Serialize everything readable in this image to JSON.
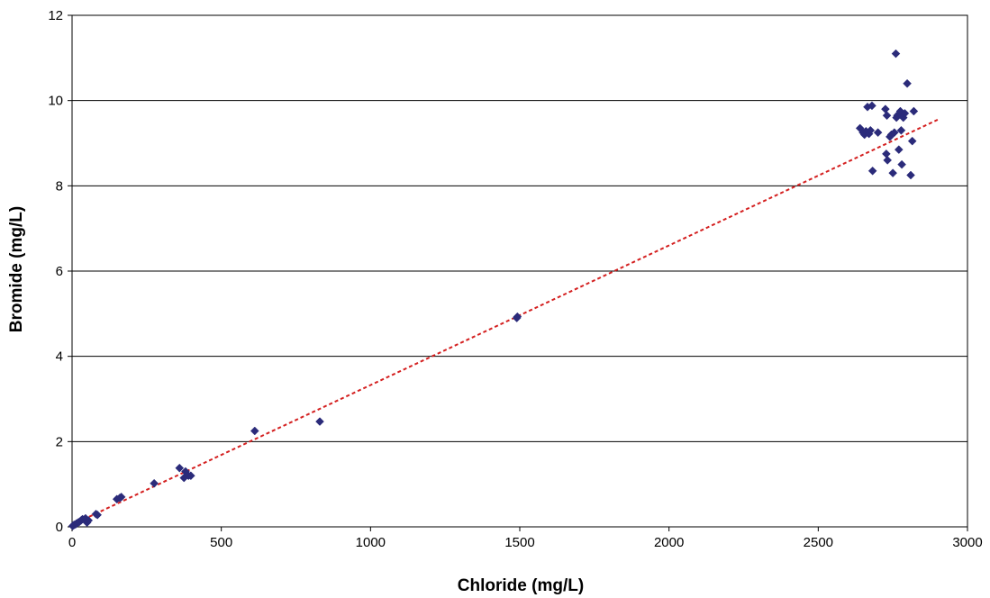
{
  "chart_data": {
    "type": "scatter",
    "xlabel": "Chloride (mg/L)",
    "ylabel": "Bromide (mg/L)",
    "xlim": [
      0,
      3000
    ],
    "ylim": [
      0,
      12
    ],
    "xticks": [
      "0",
      "500",
      "1000",
      "1500",
      "2000",
      "2500",
      "3000"
    ],
    "yticks": [
      "0",
      "2",
      "4",
      "6",
      "8",
      "10",
      "12"
    ],
    "grid": "horizontal",
    "legend": "none",
    "colors": {
      "points": "#2b2b7a",
      "trendline": "#d42020",
      "grid": "#000000"
    },
    "points": [
      [
        2,
        0.02
      ],
      [
        5,
        0.04
      ],
      [
        8,
        0.05
      ],
      [
        12,
        0.06
      ],
      [
        15,
        0.08
      ],
      [
        20,
        0.1
      ],
      [
        25,
        0.12
      ],
      [
        30,
        0.15
      ],
      [
        35,
        0.18
      ],
      [
        45,
        0.2
      ],
      [
        50,
        0.1
      ],
      [
        55,
        0.15
      ],
      [
        80,
        0.3
      ],
      [
        85,
        0.28
      ],
      [
        150,
        0.65
      ],
      [
        160,
        0.68
      ],
      [
        165,
        0.7
      ],
      [
        275,
        1.02
      ],
      [
        360,
        1.38
      ],
      [
        375,
        1.15
      ],
      [
        380,
        1.3
      ],
      [
        390,
        1.2
      ],
      [
        398,
        1.2
      ],
      [
        612,
        2.25
      ],
      [
        830,
        2.47
      ],
      [
        1490,
        4.9
      ],
      [
        1492,
        4.93
      ],
      [
        2640,
        9.35
      ],
      [
        2650,
        9.25
      ],
      [
        2655,
        9.2
      ],
      [
        2660,
        9.28
      ],
      [
        2665,
        9.85
      ],
      [
        2670,
        9.22
      ],
      [
        2675,
        9.3
      ],
      [
        2680,
        9.88
      ],
      [
        2682,
        8.35
      ],
      [
        2700,
        9.25
      ],
      [
        2725,
        9.8
      ],
      [
        2728,
        8.75
      ],
      [
        2730,
        9.65
      ],
      [
        2732,
        8.6
      ],
      [
        2740,
        9.15
      ],
      [
        2745,
        9.2
      ],
      [
        2750,
        8.3
      ],
      [
        2755,
        9.25
      ],
      [
        2760,
        11.1
      ],
      [
        2762,
        9.6
      ],
      [
        2765,
        9.65
      ],
      [
        2770,
        8.85
      ],
      [
        2772,
        9.7
      ],
      [
        2775,
        9.75
      ],
      [
        2778,
        9.3
      ],
      [
        2780,
        8.5
      ],
      [
        2785,
        9.6
      ],
      [
        2790,
        9.7
      ],
      [
        2798,
        10.4
      ],
      [
        2810,
        8.25
      ],
      [
        2815,
        9.05
      ],
      [
        2820,
        9.75
      ]
    ],
    "trendline": {
      "style": "dashed",
      "x": [
        0,
        2900
      ],
      "y": [
        0.05,
        9.55
      ]
    }
  }
}
